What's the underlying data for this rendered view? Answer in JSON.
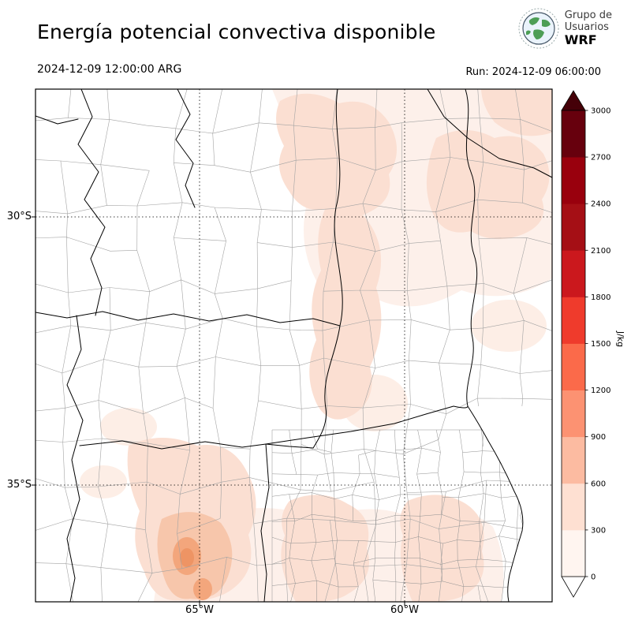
{
  "header": {
    "title": "Energía potencial convectiva disponible",
    "valid_time": "2024-12-09 12:00:00 ARG",
    "run_label": "Run: 2024-12-09 06:00:00",
    "logo": {
      "line1": "Grupo de",
      "line2": "Usuarios",
      "line3": "WRF"
    }
  },
  "map": {
    "lat_ticks": [
      {
        "label": "30°S"
      },
      {
        "label": "35°S"
      }
    ],
    "lon_ticks": [
      {
        "label": "65°W"
      },
      {
        "label": "60°W"
      }
    ]
  },
  "colorbar": {
    "units": "J/kg",
    "levels": [
      0,
      300,
      600,
      900,
      1200,
      1500,
      1800,
      2100,
      2400,
      2700,
      3000
    ],
    "colors": [
      "#fff5f0",
      "#fee0d2",
      "#fcbba1",
      "#fc9272",
      "#fb6a4a",
      "#ef3b2c",
      "#cb181d",
      "#a50f15",
      "#99000d",
      "#67000d"
    ],
    "over_color": "#450008",
    "under_color": "#ffffff"
  },
  "chart_data": {
    "type": "heatmap",
    "title": "Energía potencial convectiva disponible",
    "valid_time": "2024-12-09 12:00:00 ARG",
    "model_run": "2024-12-09 06:00:00",
    "units": "J/kg",
    "contour_levels": [
      0,
      300,
      600,
      900,
      1200,
      1500,
      1800,
      2100,
      2400,
      2700,
      3000
    ],
    "palette": [
      "#fff5f0",
      "#fee0d2",
      "#fcbba1",
      "#fc9272",
      "#fb6a4a",
      "#ef3b2c",
      "#cb181d",
      "#a50f15",
      "#99000d",
      "#67000d"
    ],
    "lat_gridlines": [
      "30°S",
      "35°S"
    ],
    "lon_gridlines": [
      "65°W",
      "60°W"
    ],
    "legend_position": "right"
  }
}
